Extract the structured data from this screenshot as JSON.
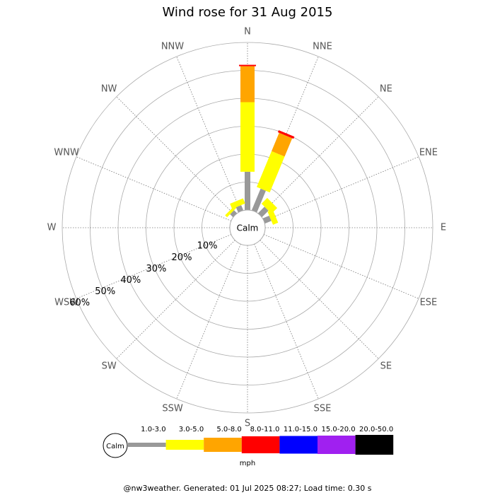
{
  "chart_data": {
    "type": "windrose",
    "title": "Wind rose for 31 Aug 2015",
    "categories": [
      "N",
      "NNE",
      "NE",
      "ENE",
      "E",
      "ESE",
      "SE",
      "SSE",
      "S",
      "SSW",
      "SW",
      "WSW",
      "W",
      "WNW",
      "NW",
      "NNW"
    ],
    "calm_label": "Calm",
    "series": [
      {
        "name": "1.0-3.0",
        "color": "#999999",
        "values": [
          13.7,
          8.4,
          3.3,
          2.5,
          0,
          0,
          0,
          0,
          0,
          0,
          0,
          0,
          0,
          0,
          1.5,
          2.0
        ]
      },
      {
        "name": "3.0-5.0",
        "color": "#ffff00",
        "values": [
          24.9,
          13.9,
          2.9,
          2.0,
          0,
          0,
          0,
          0,
          0,
          0,
          0,
          0,
          0,
          0,
          1.0,
          2.0
        ]
      },
      {
        "name": "5.0-8.0",
        "color": "#ffa500",
        "values": [
          12.9,
          7.1,
          0,
          0,
          0,
          0,
          0,
          0,
          0,
          0,
          0,
          0,
          0,
          0,
          0,
          0
        ]
      },
      {
        "name": "8.0-11.0",
        "color": "#ff0000",
        "values": [
          0.5,
          0.8,
          0,
          0,
          0,
          0,
          0,
          0,
          0,
          0,
          0,
          0,
          0,
          0,
          0,
          0
        ]
      },
      {
        "name": "11.0-15.0",
        "color": "#0000ff",
        "values": [
          0,
          0,
          0,
          0,
          0,
          0,
          0,
          0,
          0,
          0,
          0,
          0,
          0,
          0,
          0,
          0
        ]
      },
      {
        "name": "15.0-20.0",
        "color": "#a020f0",
        "values": [
          0,
          0,
          0,
          0,
          0,
          0,
          0,
          0,
          0,
          0,
          0,
          0,
          0,
          0,
          0,
          0
        ]
      },
      {
        "name": "20.0-50.0",
        "color": "#000000",
        "values": [
          0,
          0,
          0,
          0,
          0,
          0,
          0,
          0,
          0,
          0,
          0,
          0,
          0,
          0,
          0,
          0
        ]
      }
    ],
    "ylim": [
      0,
      60
    ],
    "yticks": [
      {
        "value": 10,
        "label": "10%"
      },
      {
        "value": 20,
        "label": "20%"
      },
      {
        "value": 30,
        "label": "30%"
      },
      {
        "value": 40,
        "label": "40%"
      },
      {
        "value": 50,
        "label": "50%"
      },
      {
        "value": 60,
        "label": "60%"
      }
    ],
    "legend_unit": "mph",
    "footer": "@nw3weather. Generated: 01 Jul 2025 08:27; Load time: 0.30 s"
  }
}
